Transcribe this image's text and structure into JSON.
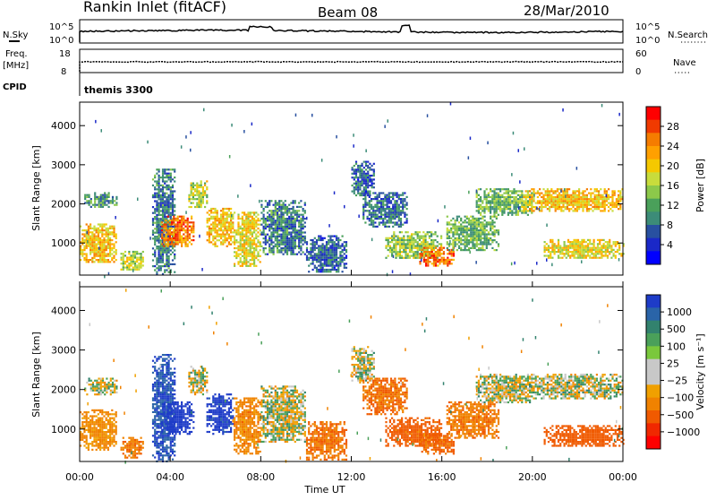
{
  "header": {
    "station": "Rankin Inlet (fitACF)",
    "beam": "Beam 08",
    "date": "28/Mar/2010"
  },
  "noise_panel": {
    "left_label": "N.Sky",
    "left_ticks": [
      "10^5",
      "10^0"
    ],
    "right_ticks": [
      "10^5",
      "10^0"
    ],
    "right_label": "N.Search"
  },
  "freq_panel": {
    "left_label_1": "Freq.",
    "left_label_2": "[MHz]",
    "left_ticks": [
      "18",
      "8"
    ],
    "right_ticks": [
      "60",
      "0"
    ],
    "right_label": "Nave"
  },
  "cpid_panel": {
    "label": "CPID",
    "value": "themis 3300"
  },
  "power_colorbar": {
    "label": "Power [dB]",
    "ticks": [
      "28",
      "24",
      "20",
      "16",
      "12",
      "8",
      "4"
    ],
    "colors": [
      "#ff0000",
      "#f03a00",
      "#f57c00",
      "#ffa000",
      "#f5c800",
      "#c8dc3c",
      "#8cc84a",
      "#4aa05a",
      "#3c8c78",
      "#2850a0",
      "#1a28c8",
      "#0000ff"
    ]
  },
  "velocity_colorbar": {
    "label": "Velocity [m s⁻¹]",
    "ticks": [
      "1000",
      "500",
      "100",
      "25",
      "−25",
      "−100",
      "−500",
      "−1000"
    ],
    "colors": [
      "#1e3cc8",
      "#2a64a8",
      "#32826e",
      "#4aa05a",
      "#7ac83c",
      "#c8c8c8",
      "#c8c8c8",
      "#f0a000",
      "#f08200",
      "#f05a00",
      "#f02800",
      "#ff0000"
    ]
  },
  "chart_data": {
    "type": "heatmap",
    "title": "Rankin Inlet (fitACF) Beam 08 28/Mar/2010",
    "xlabel": "Time UT",
    "ylabel": "Slant Range [km]",
    "x_ticks": [
      "00:00",
      "04:00",
      "08:00",
      "12:00",
      "16:00",
      "20:00",
      "00:00"
    ],
    "y_ticks": [
      "4000",
      "3000",
      "2000",
      "1000"
    ],
    "x_range_hours": [
      0,
      24
    ],
    "y_range_km": [
      180,
      4600
    ],
    "panels": [
      {
        "name": "Power",
        "unit": "dB",
        "blobs": [
          {
            "t0": 0.0,
            "t1": 1.6,
            "r0": 500,
            "r1": 1500,
            "v": 22
          },
          {
            "t0": 0.2,
            "t1": 1.6,
            "r0": 1900,
            "r1": 2300,
            "v": 12
          },
          {
            "t0": 1.8,
            "t1": 2.8,
            "r0": 300,
            "r1": 800,
            "v": 18
          },
          {
            "t0": 3.2,
            "t1": 4.2,
            "r0": 200,
            "r1": 2900,
            "v": 10
          },
          {
            "t0": 3.6,
            "t1": 5.0,
            "r0": 900,
            "r1": 1700,
            "v": 26
          },
          {
            "t0": 4.8,
            "t1": 5.6,
            "r0": 1900,
            "r1": 2600,
            "v": 18
          },
          {
            "t0": 5.6,
            "t1": 6.8,
            "r0": 900,
            "r1": 1900,
            "v": 22
          },
          {
            "t0": 6.8,
            "t1": 8.0,
            "r0": 400,
            "r1": 1800,
            "v": 20
          },
          {
            "t0": 8.0,
            "t1": 10.0,
            "r0": 700,
            "r1": 2100,
            "v": 10
          },
          {
            "t0": 10.0,
            "t1": 11.8,
            "r0": 250,
            "r1": 1200,
            "v": 8
          },
          {
            "t0": 12.0,
            "t1": 13.0,
            "r0": 2200,
            "r1": 3100,
            "v": 8
          },
          {
            "t0": 12.5,
            "t1": 14.5,
            "r0": 1400,
            "r1": 2300,
            "v": 9
          },
          {
            "t0": 13.5,
            "t1": 16.0,
            "r0": 600,
            "r1": 1300,
            "v": 16
          },
          {
            "t0": 15.0,
            "t1": 16.5,
            "r0": 400,
            "r1": 900,
            "v": 27
          },
          {
            "t0": 16.2,
            "t1": 18.5,
            "r0": 800,
            "r1": 1700,
            "v": 14
          },
          {
            "t0": 17.5,
            "t1": 20.0,
            "r0": 1700,
            "r1": 2400,
            "v": 14
          },
          {
            "t0": 19.5,
            "t1": 24.0,
            "r0": 1800,
            "r1": 2400,
            "v": 22
          },
          {
            "t0": 20.5,
            "t1": 24.0,
            "r0": 600,
            "r1": 1100,
            "v": 20
          }
        ]
      },
      {
        "name": "Velocity",
        "unit": "m s-1",
        "blobs": [
          {
            "t0": 0.0,
            "t1": 1.6,
            "r0": 500,
            "r1": 1500,
            "v": -150
          },
          {
            "t0": 0.2,
            "t1": 1.6,
            "r0": 1900,
            "r1": 2300,
            "v": 0
          },
          {
            "t0": 1.8,
            "t1": 2.8,
            "r0": 300,
            "r1": 800,
            "v": -250
          },
          {
            "t0": 3.2,
            "t1": 4.2,
            "r0": 200,
            "r1": 2900,
            "v": 600
          },
          {
            "t0": 3.6,
            "t1": 5.0,
            "r0": 900,
            "r1": 1700,
            "v": 900
          },
          {
            "t0": 4.8,
            "t1": 5.6,
            "r0": 1900,
            "r1": 2600,
            "v": 0
          },
          {
            "t0": 5.6,
            "t1": 6.8,
            "r0": 900,
            "r1": 1900,
            "v": 700
          },
          {
            "t0": 6.8,
            "t1": 8.0,
            "r0": 400,
            "r1": 1800,
            "v": -200
          },
          {
            "t0": 8.0,
            "t1": 10.0,
            "r0": 700,
            "r1": 2100,
            "v": 0
          },
          {
            "t0": 10.0,
            "t1": 11.8,
            "r0": 250,
            "r1": 1200,
            "v": -300
          },
          {
            "t0": 12.0,
            "t1": 13.0,
            "r0": 2200,
            "r1": 3100,
            "v": 0
          },
          {
            "t0": 12.5,
            "t1": 14.5,
            "r0": 1400,
            "r1": 2300,
            "v": -300
          },
          {
            "t0": 13.5,
            "t1": 16.0,
            "r0": 600,
            "r1": 1300,
            "v": -400
          },
          {
            "t0": 15.0,
            "t1": 16.5,
            "r0": 400,
            "r1": 900,
            "v": -350
          },
          {
            "t0": 16.2,
            "t1": 18.5,
            "r0": 800,
            "r1": 1700,
            "v": -250
          },
          {
            "t0": 17.5,
            "t1": 20.0,
            "r0": 1700,
            "r1": 2400,
            "v": 0
          },
          {
            "t0": 19.5,
            "t1": 24.0,
            "r0": 1800,
            "r1": 2400,
            "v": 0
          },
          {
            "t0": 20.5,
            "t1": 24.0,
            "r0": 600,
            "r1": 1100,
            "v": -450
          }
        ]
      }
    ]
  }
}
